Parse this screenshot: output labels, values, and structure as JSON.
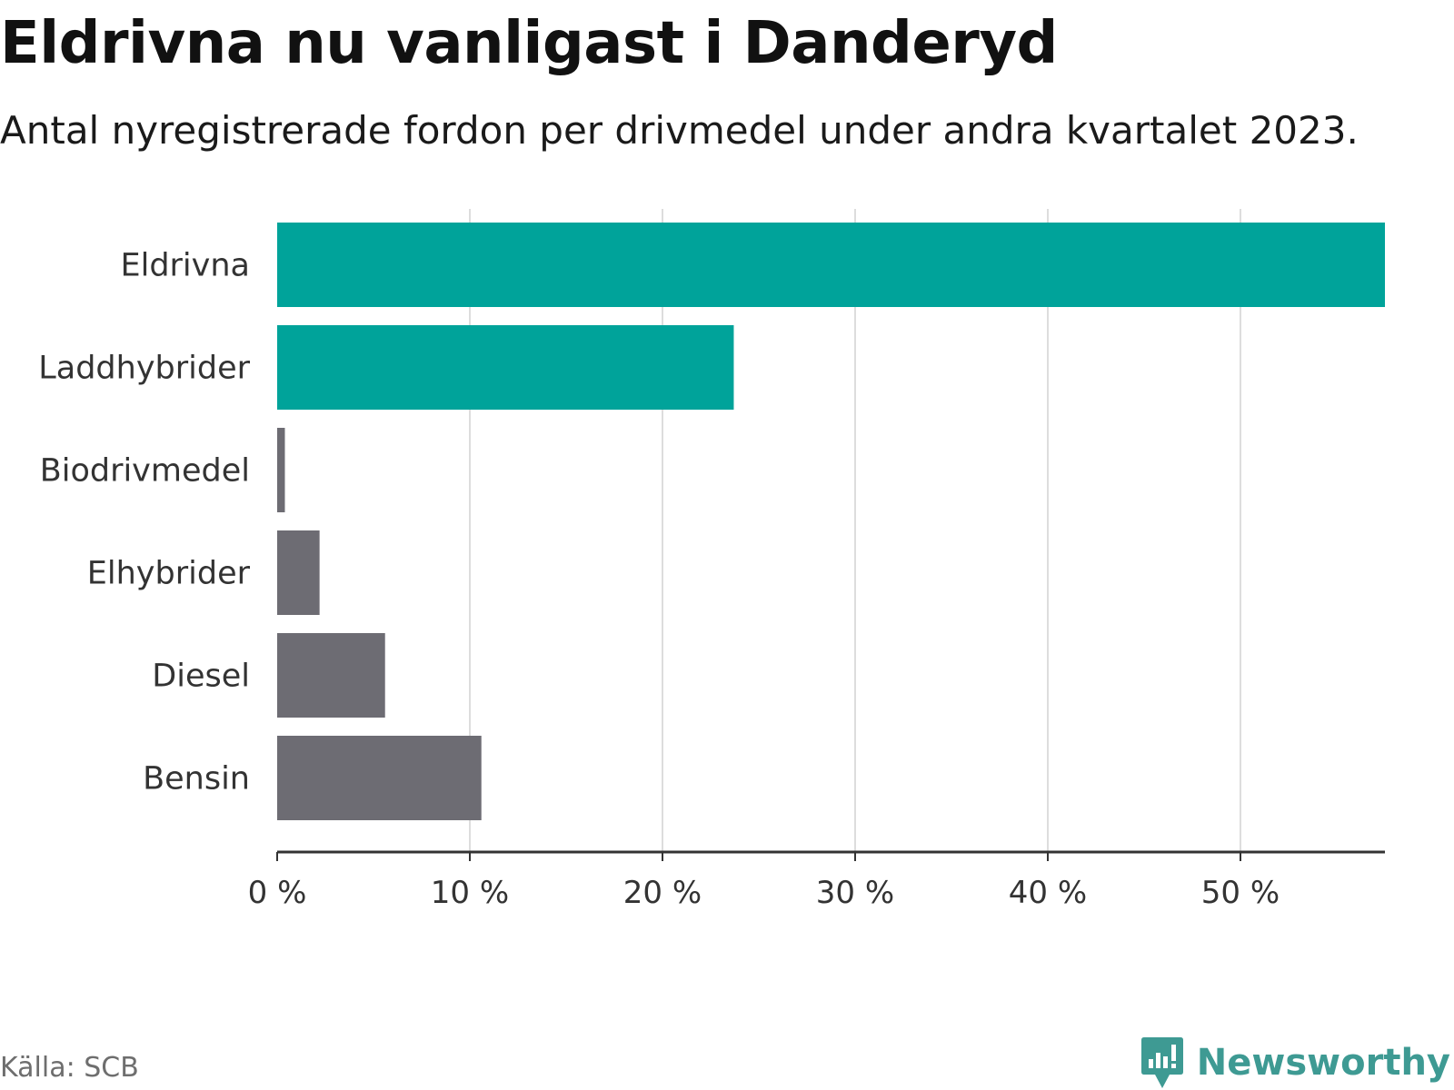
{
  "title": "Eldrivna nu vanligast i Danderyd",
  "subtitle": "Antal nyregistrerade fordon per drivmedel under andra kvartalet 2023.",
  "source": "Källa: SCB",
  "brand": "Newsworthy",
  "colors": {
    "highlight": "#00a39a",
    "default": "#6d6c73",
    "grid": "#dddddd",
    "axis": "#333333",
    "brand": "#3e9a93"
  },
  "chart_data": {
    "type": "bar",
    "orientation": "horizontal",
    "categories": [
      "Eldrivna",
      "Laddhybrider",
      "Biodrivmedel",
      "Elhybrider",
      "Diesel",
      "Bensin"
    ],
    "values": [
      57.5,
      23.7,
      0.4,
      2.2,
      5.6,
      10.6
    ],
    "highlighted": [
      true,
      true,
      false,
      false,
      false,
      false
    ],
    "unit": "%",
    "xlim": [
      0,
      57.5
    ],
    "ticks": [
      0,
      10,
      20,
      30,
      40,
      50
    ],
    "tick_labels": [
      "0 %",
      "10 %",
      "20 %",
      "30 %",
      "40 %",
      "50 %"
    ],
    "grid": true,
    "xlabel": "",
    "ylabel": ""
  }
}
